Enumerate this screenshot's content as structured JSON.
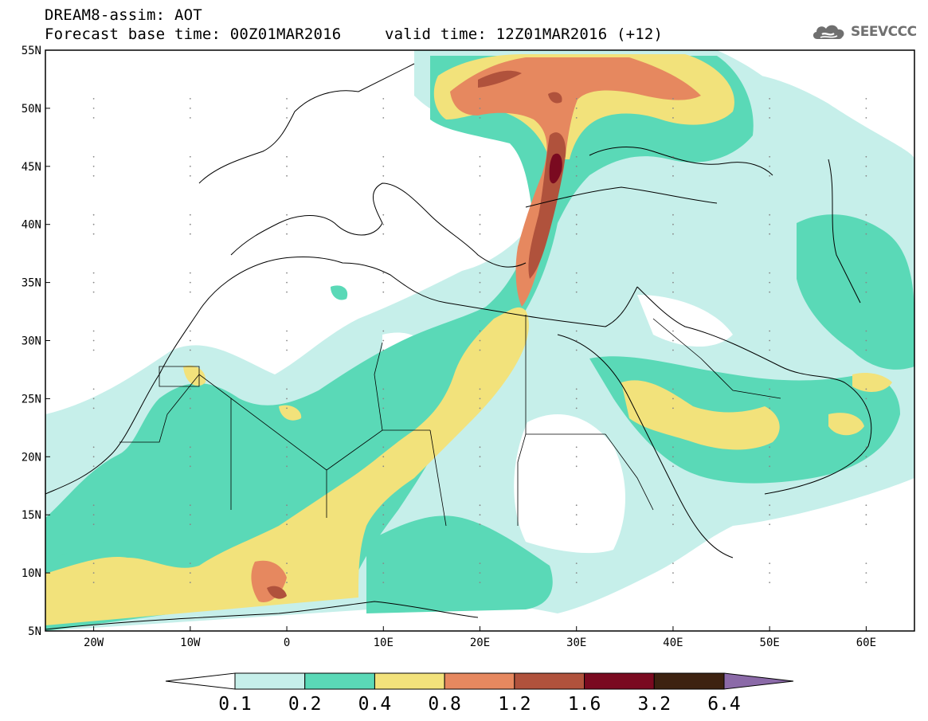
{
  "header": {
    "title_line1": "DREAM8-assim: AOT",
    "title_line2": "Forecast base time: 00Z01MAR2016",
    "valid_time": "valid time: 12Z01MAR2016 (+12)"
  },
  "logo": {
    "text": "SEEVCCC",
    "icon": "cloud-icon"
  },
  "map": {
    "lat_labels": [
      "55N",
      "50N",
      "45N",
      "40N",
      "35N",
      "30N",
      "25N",
      "20N",
      "15N",
      "10N",
      "5N"
    ],
    "lon_labels": [
      "20W",
      "10W",
      "0",
      "10E",
      "20E",
      "30E",
      "40E",
      "50E",
      "60E"
    ],
    "lon_range": [
      -25,
      65
    ],
    "lat_range": [
      5,
      55
    ]
  },
  "colorbar": {
    "labels": [
      "0.1",
      "0.2",
      "0.4",
      "0.8",
      "1.2",
      "1.6",
      "3.2",
      "6.4"
    ],
    "colors": [
      "#c6efea",
      "#5ad9b7",
      "#f2e27b",
      "#e6885f",
      "#b0523c",
      "#7a0a20",
      "#3d2210",
      "#8b6aa8"
    ]
  },
  "colors": {
    "aot_0_1": "#c6efea",
    "aot_0_2": "#5ad9b7",
    "aot_0_4": "#f2e27b",
    "aot_0_8": "#e6885f",
    "aot_1_2": "#b0523c",
    "aot_1_6": "#7a0a20"
  }
}
